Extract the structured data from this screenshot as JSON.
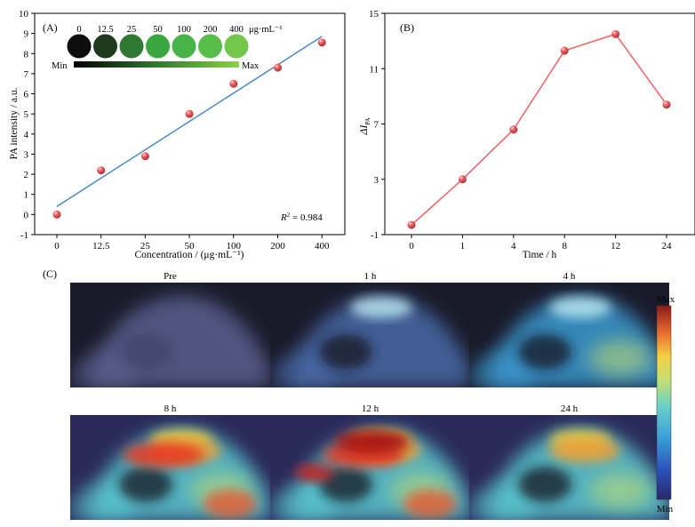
{
  "chart_data": [
    {
      "panel": "(A)",
      "type": "scatter",
      "xlabel": "Concentration / (μg·mL⁻¹)",
      "ylabel": "PA intensity / a.u.",
      "categories": [
        "0",
        "12.5",
        "25",
        "50",
        "100",
        "200",
        "400"
      ],
      "values": [
        0.0,
        2.2,
        2.9,
        5.0,
        6.5,
        7.3,
        8.55
      ],
      "fit": {
        "type": "linear",
        "start": 0.4,
        "end": 8.85
      },
      "ylim": [
        -1,
        10
      ],
      "yticks": [
        -1,
        0,
        1,
        2,
        3,
        4,
        5,
        6,
        7,
        8,
        9,
        10
      ],
      "annotation": {
        "prefix": "R",
        "sup": "2",
        "value": " = 0.984"
      },
      "inset": {
        "labels": [
          "0",
          "12.5",
          "25",
          "50",
          "100",
          "200",
          "400"
        ],
        "unit": "μg·mL⁻¹",
        "colors": [
          "#0d0d0d",
          "#1f3a1f",
          "#2e7a33",
          "#3aa641",
          "#46b449",
          "#56bd4a",
          "#72c64b"
        ],
        "scale_min": "Min",
        "scale_max": "Max"
      },
      "colors": {
        "point": "#ec4e52",
        "fit": "#4a8cc8"
      },
      "grid": false
    },
    {
      "panel": "(B)",
      "type": "line",
      "xlabel": "Time / h",
      "ylabel": "ΔI",
      "ylabel_sub": "PA",
      "categories": [
        "0",
        "1",
        "4",
        "8",
        "12",
        "24"
      ],
      "values": [
        -0.3,
        3.0,
        6.6,
        12.3,
        13.5,
        8.4
      ],
      "ylim": [
        -1,
        15
      ],
      "yticks": [
        -1,
        3,
        7,
        11,
        15
      ],
      "colors": {
        "point": "#ec4e52",
        "line": "#ec6a6c"
      },
      "grid": false
    },
    {
      "panel": "(C)",
      "type": "heatmap",
      "images": [
        {
          "label": "Pre",
          "level": 0.05
        },
        {
          "label": "1 h",
          "level": 0.25
        },
        {
          "label": "4 h",
          "level": 0.45
        },
        {
          "label": "8 h",
          "level": 0.9
        },
        {
          "label": "12 h",
          "level": 1.0
        },
        {
          "label": "24 h",
          "level": 0.6
        }
      ],
      "colorbar": {
        "max": "Max",
        "min": "Min"
      }
    }
  ]
}
